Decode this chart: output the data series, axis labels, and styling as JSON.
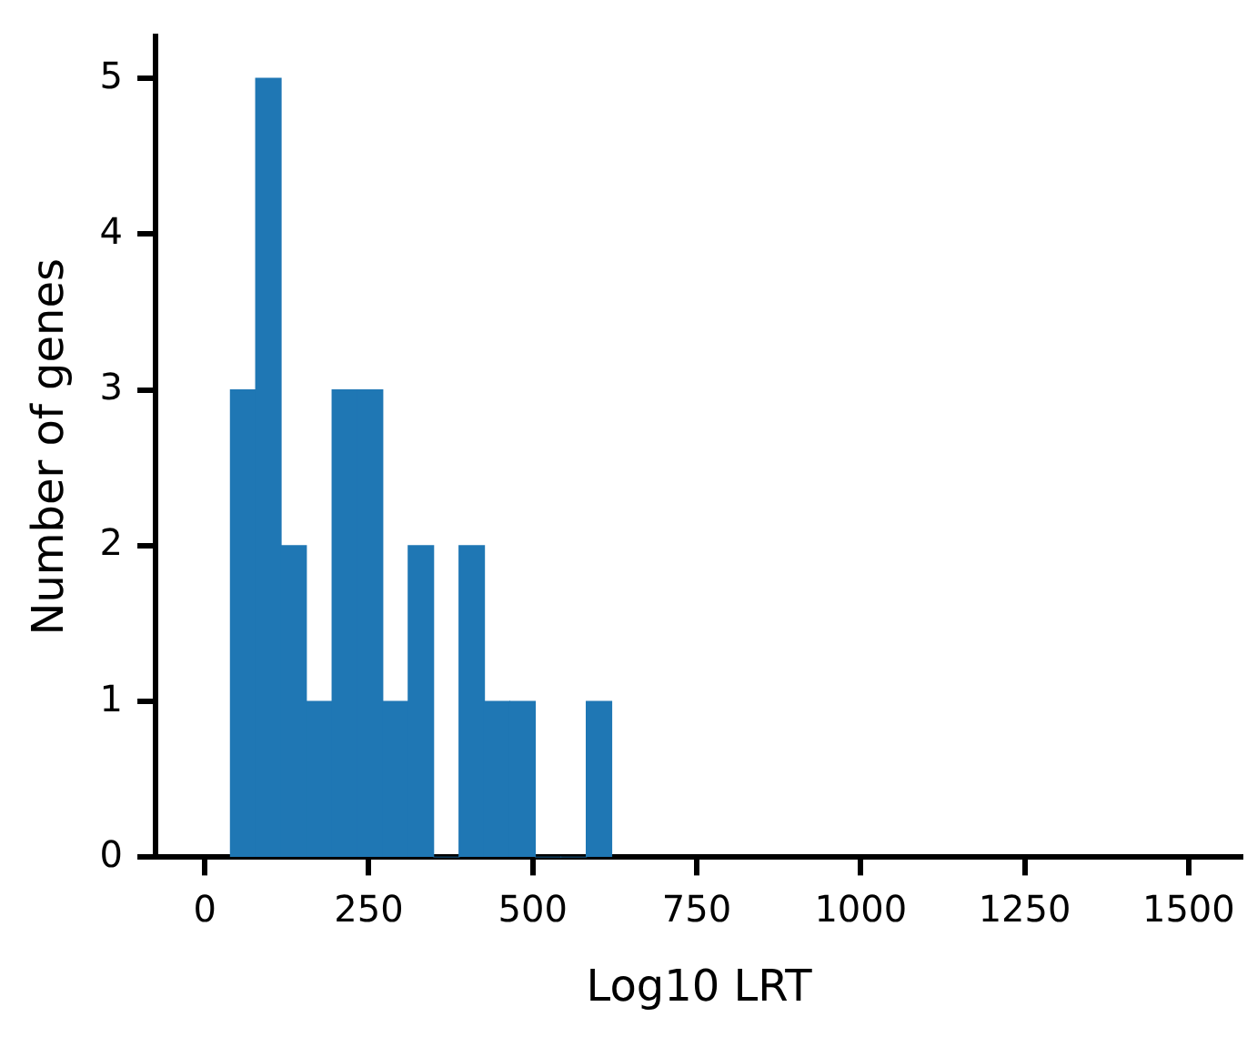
{
  "chart_data": {
    "type": "histogram",
    "xlabel": "Log10 LRT",
    "ylabel": "Number of genes",
    "bins": [
      39,
      78,
      116,
      155,
      194,
      233,
      271,
      310,
      349,
      388,
      426,
      465,
      504,
      543,
      582,
      620
    ],
    "values": [
      3,
      5,
      2,
      1,
      3,
      3,
      1,
      2,
      0,
      2,
      1,
      1,
      0,
      0,
      1
    ],
    "color": "#1f77b4",
    "xlim": [
      -75,
      1582
    ],
    "xticks": [
      0,
      250,
      500,
      750,
      1000,
      1250,
      1500
    ],
    "ylim": [
      0,
      5.27
    ],
    "yticks": [
      0,
      1,
      2,
      3,
      4,
      5
    ],
    "grid": false,
    "legend": false
  }
}
